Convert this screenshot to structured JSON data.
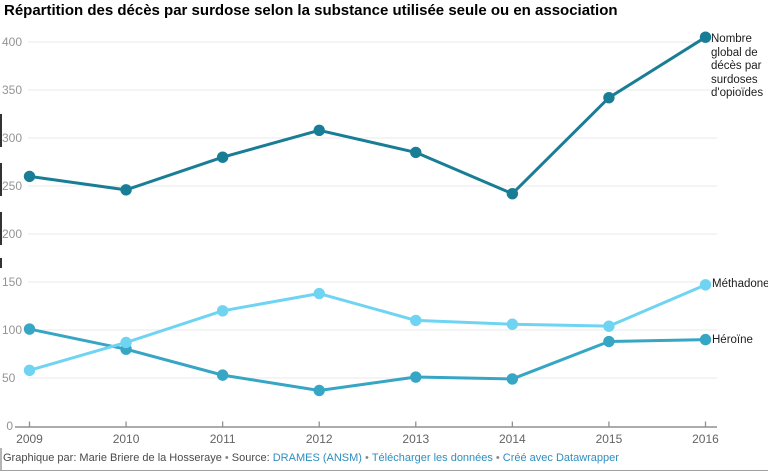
{
  "title": "Répartition des décès par surdose selon la substance utilisée seule ou en association",
  "footer": {
    "byline": "Graphique par: Marie Briere de la Hosseraye",
    "source_label": "Source:",
    "source_link": "DRAMES (ANSM)",
    "download_link": "Télécharger les données",
    "credit_link": "Créé avec Datawrapper",
    "separator": "•"
  },
  "colors": {
    "opioids_line": "#1a7d96",
    "methadone_line": "#6fd4f2",
    "heroine_line": "#36a6c4",
    "gridline": "#e9e9e9",
    "axis": "#909090",
    "y_tick_label": "#949494",
    "x_tick_label": "#646464",
    "footer_link": "#2e8fc0"
  },
  "chart_data": {
    "type": "line",
    "x": [
      "2009",
      "2010",
      "2011",
      "2012",
      "2013",
      "2014",
      "2015",
      "2016"
    ],
    "series": [
      {
        "name": "Nombre global de décès par surdoses d'opioïdes",
        "color": "#1a7d96",
        "values": [
          260,
          246,
          280,
          308,
          285,
          242,
          342,
          405
        ]
      },
      {
        "name": "Méthadone",
        "color": "#6fd4f2",
        "values": [
          58,
          87,
          120,
          138,
          110,
          106,
          104,
          147
        ]
      },
      {
        "name": "Héroïne",
        "color": "#36a6c4",
        "values": [
          101,
          80,
          53,
          37,
          51,
          49,
          88,
          90
        ]
      }
    ],
    "ylim": [
      0,
      400
    ],
    "ytick_step": 50,
    "grid": true,
    "legend_position": "right",
    "xlabel": "",
    "ylabel": ""
  }
}
